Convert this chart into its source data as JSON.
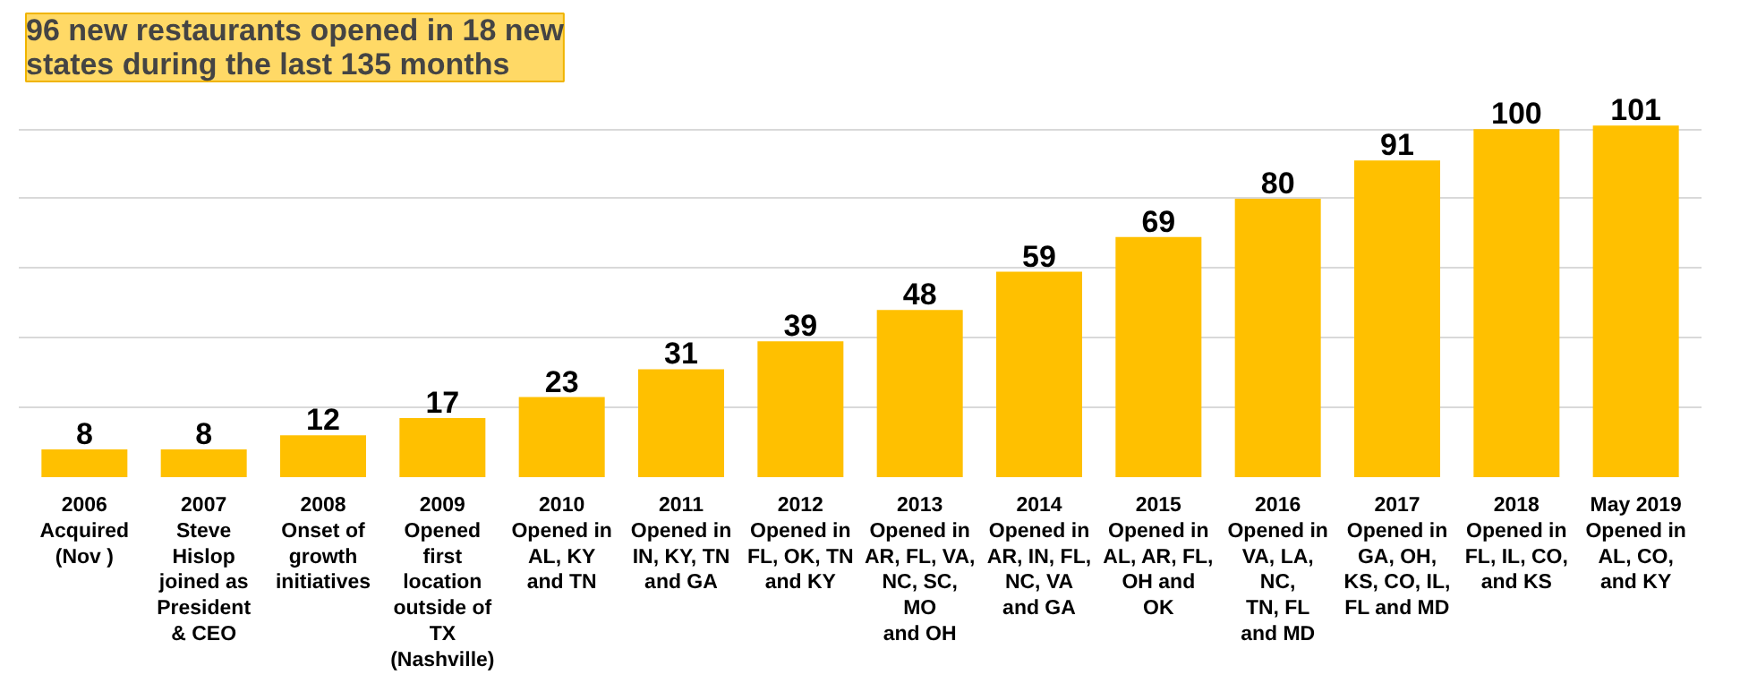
{
  "chart_data": {
    "type": "bar",
    "title": "96 new restaurants opened in 18 new\nstates during the last 135 months",
    "categories": [
      "2006\nAcquired\n(Nov )",
      "2007\nSteve\nHislop\njoined as\nPresident\n& CEO",
      "2008\nOnset of\ngrowth\ninitiatives",
      "2009\nOpened\nfirst\nlocation\noutside of\nTX\n(Nashville)",
      "2010\nOpened in\nAL, KY\nand TN",
      "2011\nOpened in\nIN, KY, TN\nand GA",
      "2012\nOpened in\nFL, OK, TN\nand KY",
      "2013\nOpened in\nAR, FL, VA,\nNC, SC,\nMO\nand OH",
      "2014\nOpened in\nAR, IN, FL,\nNC, VA\nand GA",
      "2015\nOpened in\nAL, AR, FL,\nOH and\nOK",
      "2016\nOpened in\nVA, LA,\nNC,\nTN, FL\nand MD",
      "2017\nOpened in\nGA, OH,\nKS, CO, IL,\nFL and MD",
      "2018\nOpened in\nFL, IL, CO,\nand KS",
      "May 2019\nOpened in\nAL, CO,\nand KY"
    ],
    "values": [
      8,
      8,
      12,
      17,
      23,
      31,
      39,
      48,
      59,
      69,
      80,
      91,
      100,
      101
    ],
    "color": "#ffc000",
    "grid": "y",
    "tick_labels": "x",
    "data_labels": true
  }
}
